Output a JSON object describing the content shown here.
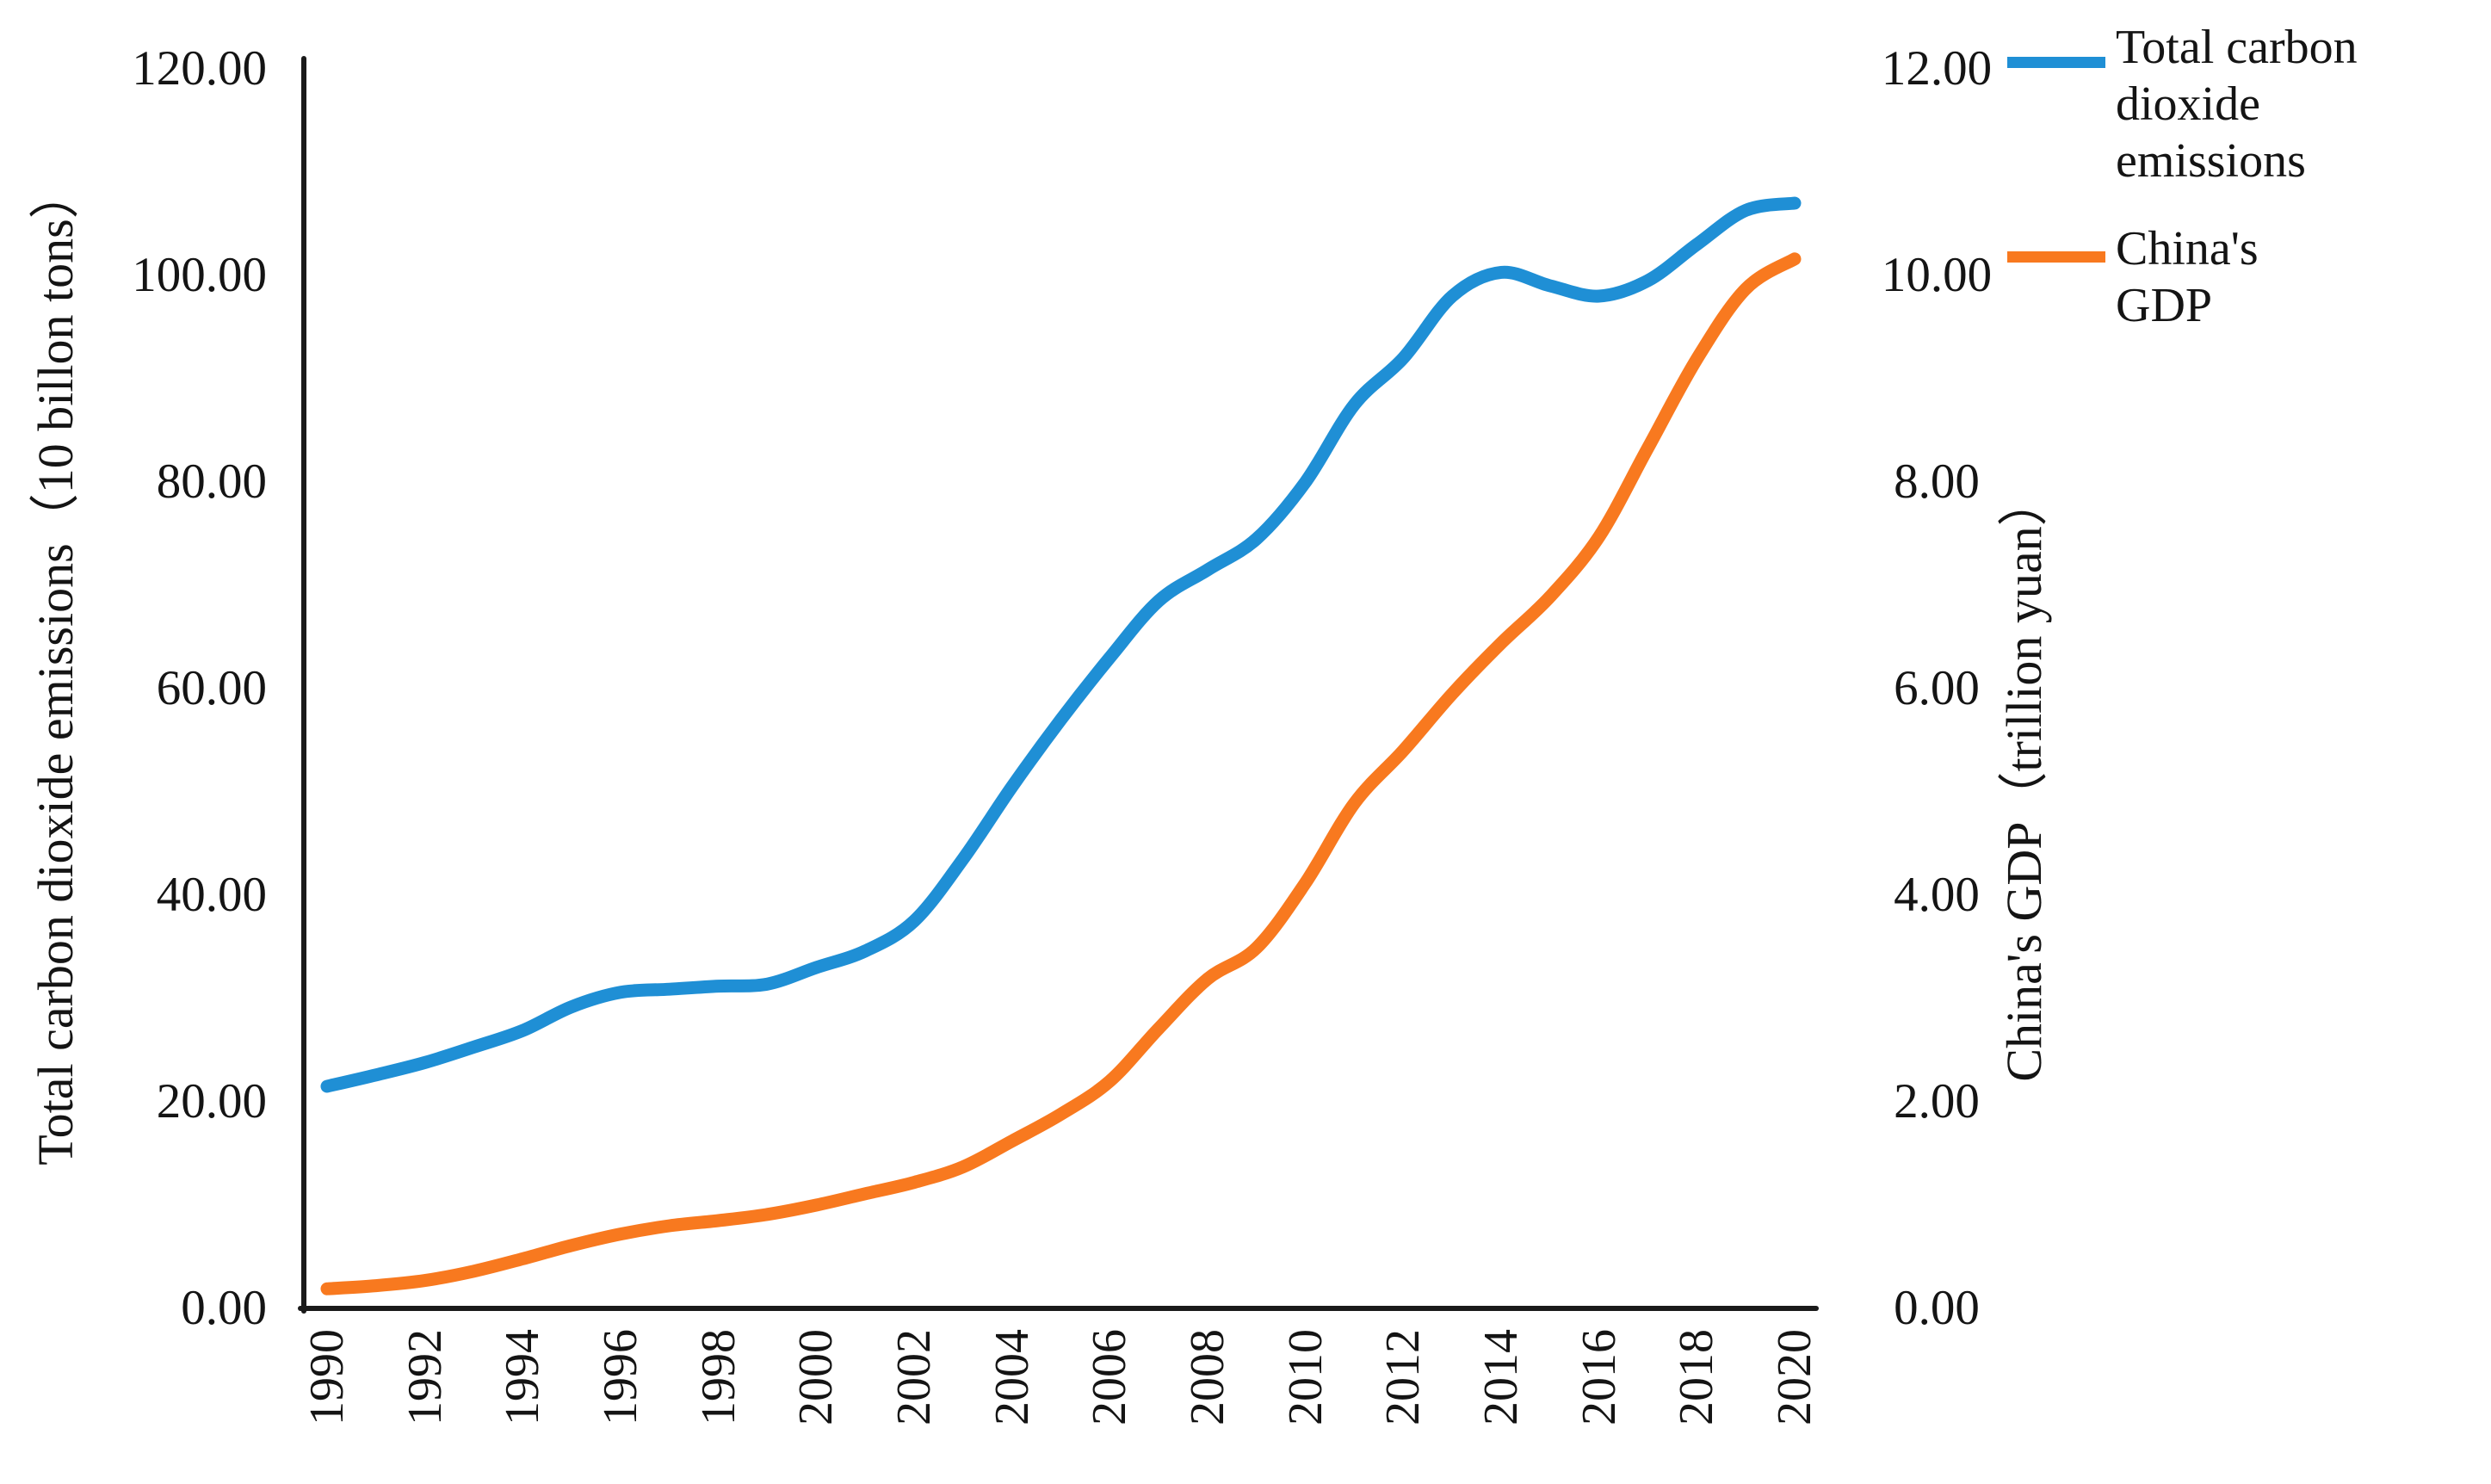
{
  "chart_data": {
    "type": "line",
    "x": [
      1990,
      1991,
      1992,
      1993,
      1994,
      1995,
      1996,
      1997,
      1998,
      1999,
      2000,
      2001,
      2002,
      2003,
      2004,
      2005,
      2006,
      2007,
      2008,
      2009,
      2010,
      2011,
      2012,
      2013,
      2014,
      2015,
      2016,
      2017,
      2018,
      2019,
      2020
    ],
    "series": [
      {
        "name": "Total carbon dioxide emissions",
        "axis": "left",
        "color": "#1F8FD5",
        "values": [
          21.5,
          22.6,
          23.8,
          25.3,
          26.9,
          29.2,
          30.6,
          30.9,
          31.2,
          31.4,
          33.0,
          34.6,
          37.5,
          43.5,
          50.5,
          57.0,
          63.0,
          68.5,
          71.5,
          74.5,
          80.0,
          87.5,
          92.0,
          98.0,
          100.3,
          99.0,
          98.0,
          99.5,
          103.0,
          106.3,
          107.0
        ]
      },
      {
        "name": "China's GDP",
        "axis": "right",
        "color": "#F8791F",
        "values": [
          0.19,
          0.22,
          0.27,
          0.36,
          0.48,
          0.61,
          0.72,
          0.8,
          0.85,
          0.91,
          1.0,
          1.11,
          1.22,
          1.37,
          1.62,
          1.88,
          2.2,
          2.71,
          3.19,
          3.49,
          4.12,
          4.89,
          5.4,
          5.95,
          6.44,
          6.89,
          7.47,
          8.33,
          9.19,
          9.87,
          10.16
        ]
      }
    ],
    "title": "",
    "xlabel": "",
    "left_axis": {
      "title": "Total carbon dioxide emissions（10 billon tons）",
      "range": [
        0,
        120
      ],
      "tick_labels": [
        "120.00",
        "100.00",
        "80.00",
        "60.00",
        "40.00",
        "20.00",
        "0.00"
      ]
    },
    "right_axis": {
      "title": "China's GDP（trillion yuan）",
      "range": [
        0,
        12
      ],
      "tick_labels": [
        "12.00",
        "10.00",
        "8.00",
        "6.00",
        "4.00",
        "2.00",
        "0.00"
      ]
    },
    "x_axis": {
      "tick_labels": [
        "1990",
        "1992",
        "1994",
        "1996",
        "1998",
        "2000",
        "2002",
        "2004",
        "2006",
        "2008",
        "2010",
        "2012",
        "2014",
        "2016",
        "2018",
        "2020"
      ]
    },
    "legend_position": "right",
    "grid": false
  },
  "legend": [
    {
      "label": "Total carbon\ndioxide\nemissions",
      "color": "#1F8FD5"
    },
    {
      "label": "China's\nGDP",
      "color": "#F8791F"
    }
  ],
  "axis_color": "#1a1a1a"
}
